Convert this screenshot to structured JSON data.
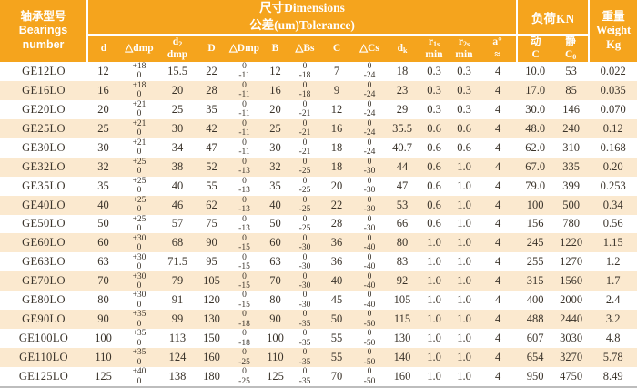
{
  "colors": {
    "header_bg": "#F5A41D",
    "stripe_bg": "#FBE9CF",
    "text": "#3A332A",
    "header_text": "#FFFFFF",
    "separator": "#FFFFFF",
    "bottom_rule": "#BDBDBD"
  },
  "header": {
    "bearings": "轴承型号\nBearings\nnumber",
    "dimensions": "尺寸Dimensions\n公差(um)Tolerance)",
    "load": "负荷KN",
    "weight": "重量\nWeight\nKg",
    "subcolumns": [
      {
        "key": "d",
        "label": "d"
      },
      {
        "key": "delta-dmp",
        "label": "△dmp"
      },
      {
        "key": "d2-dmp",
        "label": "d_{2}\ndmp"
      },
      {
        "key": "D",
        "label": "D"
      },
      {
        "key": "delta-Dmp",
        "label": "△Dmp"
      },
      {
        "key": "B",
        "label": "B"
      },
      {
        "key": "delta-Bs",
        "label": "△Bs"
      },
      {
        "key": "C",
        "label": "C"
      },
      {
        "key": "delta-Cs",
        "label": "△Cs"
      },
      {
        "key": "dk",
        "label": "d_{k}"
      },
      {
        "key": "r1s-min",
        "label": "r_{1s}\nmin"
      },
      {
        "key": "r2s-min",
        "label": "r_{2s}\nmin"
      },
      {
        "key": "a-approx",
        "label": "a°\n≈"
      },
      {
        "key": "dynamic-C",
        "label": "动\nC"
      },
      {
        "key": "static-C0",
        "label": "静\nC_{0}"
      }
    ]
  },
  "body_column_keys": [
    "model",
    "d",
    "delta-dmp",
    "d2-dmp",
    "D",
    "delta-Dmp",
    "B",
    "delta-Bs",
    "C",
    "delta-Cs",
    "dk",
    "r1s",
    "r2s",
    "a",
    "dynamic-c",
    "static-c0",
    "weight"
  ],
  "rows": [
    [
      "GE12LO",
      "12",
      "+18\n0",
      "15.5",
      "22",
      "0\n-11",
      "12",
      "0\n-18",
      "7",
      "0\n-24",
      "18",
      "0.3",
      "0.3",
      "4",
      "10.0",
      "53",
      "0.022"
    ],
    [
      "GE16LO",
      "16",
      "+18\n0",
      "20",
      "28",
      "0\n-11",
      "16",
      "0\n-18",
      "9",
      "0\n-24",
      "23",
      "0.3",
      "0.3",
      "4",
      "17.0",
      "85",
      "0.035"
    ],
    [
      "GE20LO",
      "20",
      "+21\n0",
      "25",
      "35",
      "0\n-11",
      "20",
      "0\n-21",
      "12",
      "0\n-24",
      "29",
      "0.3",
      "0.3",
      "4",
      "30.0",
      "146",
      "0.070"
    ],
    [
      "GE25LO",
      "25",
      "+21\n0",
      "30",
      "42",
      "0\n-11",
      "25",
      "0\n-21",
      "16",
      "0\n-24",
      "35.5",
      "0.6",
      "0.6",
      "4",
      "48.0",
      "240",
      "0.12"
    ],
    [
      "GE30LO",
      "30",
      "+21\n0",
      "34",
      "47",
      "0\n-11",
      "30",
      "0\n-21",
      "18",
      "0\n-24",
      "40.7",
      "0.6",
      "0.6",
      "4",
      "62.0",
      "310",
      "0.168"
    ],
    [
      "GE32LO",
      "32",
      "+25\n0",
      "38",
      "52",
      "0\n-13",
      "32",
      "0\n-25",
      "18",
      "0\n-30",
      "44",
      "0.6",
      "1.0",
      "4",
      "67.0",
      "335",
      "0.20"
    ],
    [
      "GE35LO",
      "35",
      "+25\n0",
      "40",
      "55",
      "0\n-13",
      "35",
      "0\n-25",
      "20",
      "0\n-30",
      "47",
      "0.6",
      "1.0",
      "4",
      "79.0",
      "399",
      "0.253"
    ],
    [
      "GE40LO",
      "40",
      "+25\n0",
      "46",
      "62",
      "0\n-13",
      "40",
      "0\n-25",
      "22",
      "0\n-30",
      "53",
      "0.6",
      "1.0",
      "4",
      "100",
      "500",
      "0.34"
    ],
    [
      "GE50LO",
      "50",
      "+25\n0",
      "57",
      "75",
      "0\n-13",
      "50",
      "0\n-25",
      "28",
      "0\n-30",
      "66",
      "0.6",
      "1.0",
      "4",
      "156",
      "780",
      "0.56"
    ],
    [
      "GE60LO",
      "60",
      "+30\n0",
      "68",
      "90",
      "0\n-15",
      "60",
      "0\n-30",
      "36",
      "0\n-40",
      "80",
      "1.0",
      "1.0",
      "4",
      "245",
      "1220",
      "1.15"
    ],
    [
      "GE63LO",
      "63",
      "+30\n0",
      "71.5",
      "95",
      "0\n-15",
      "63",
      "0\n-30",
      "36",
      "0\n-40",
      "83",
      "1.0",
      "1.0",
      "4",
      "255",
      "1270",
      "1.2"
    ],
    [
      "GE70LO",
      "70",
      "+30\n0",
      "79",
      "105",
      "0\n-15",
      "70",
      "0\n-30",
      "40",
      "0\n-40",
      "92",
      "1.0",
      "1.0",
      "4",
      "315",
      "1560",
      "1.7"
    ],
    [
      "GE80LO",
      "80",
      "+30\n0",
      "91",
      "120",
      "0\n-15",
      "80",
      "0\n-30",
      "45",
      "0\n-40",
      "105",
      "1.0",
      "1.0",
      "4",
      "400",
      "2000",
      "2.4"
    ],
    [
      "GE90LO",
      "90",
      "+35\n0",
      "99",
      "130",
      "0\n-18",
      "90",
      "0\n-35",
      "50",
      "0\n-50",
      "115",
      "1.0",
      "1.0",
      "4",
      "488",
      "2440",
      "3.2"
    ],
    [
      "GE100LO",
      "100",
      "+35\n0",
      "113",
      "150",
      "0\n-18",
      "100",
      "0\n-35",
      "55",
      "0\n-50",
      "130",
      "1.0",
      "1.0",
      "4",
      "607",
      "3030",
      "4.8"
    ],
    [
      "GE110LO",
      "110",
      "+35\n0",
      "124",
      "160",
      "0\n-25",
      "110",
      "0\n-35",
      "55",
      "0\n-50",
      "140",
      "1.0",
      "1.0",
      "4",
      "654",
      "3270",
      "5.78"
    ],
    [
      "GE125LO",
      "125",
      "+40\n0",
      "138",
      "180",
      "0\n-25",
      "125",
      "0\n-35",
      "70",
      "0\n-50",
      "160",
      "1.0",
      "1.0",
      "4",
      "950",
      "4750",
      "8.49"
    ]
  ]
}
